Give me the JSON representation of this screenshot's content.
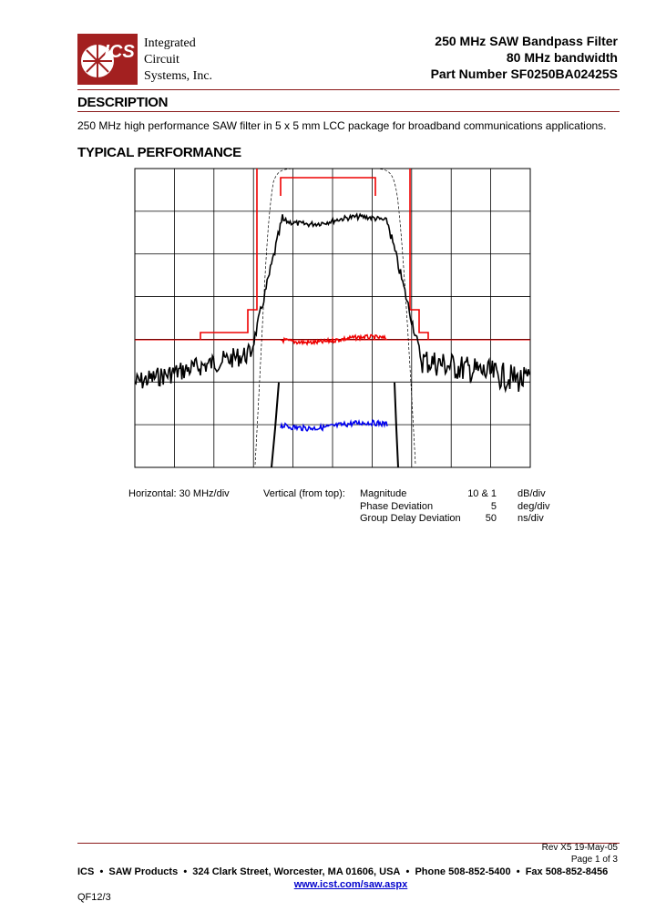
{
  "header": {
    "logo_text": "ICS",
    "company": [
      "Integrated",
      "Circuit",
      "Systems, Inc."
    ],
    "title_lines": [
      "250 MHz SAW Bandpass Filter",
      "80 MHz bandwidth",
      "Part Number SF0250BA02425S"
    ]
  },
  "description": {
    "heading": "DESCRIPTION",
    "text": "250 MHz high performance SAW filter in 5 x 5 mm LCC package for broadband communications applications."
  },
  "performance": {
    "heading": "TYPICAL PERFORMANCE",
    "horizontal": "Horizontal: 30 MHz/div",
    "vertical": "Vertical (from top):",
    "rows": [
      [
        "Magnitude",
        "10 & 1",
        "dB/div"
      ],
      [
        "Phase Deviation",
        "5",
        "deg/div"
      ],
      [
        "Group Delay Deviation",
        "50",
        "ns/div"
      ]
    ]
  },
  "footer": {
    "revision": "Rev X5 19-May-05",
    "page": "Page 1 of 3",
    "contact": [
      "ICS",
      "SAW Products",
      "324 Clark Street, Worcester, MA 01606, USA",
      "Phone 508-852-5400",
      "Fax 508-852-8456"
    ],
    "url": "www.icst.com/saw.aspx",
    "form": "QF12/3"
  }
}
